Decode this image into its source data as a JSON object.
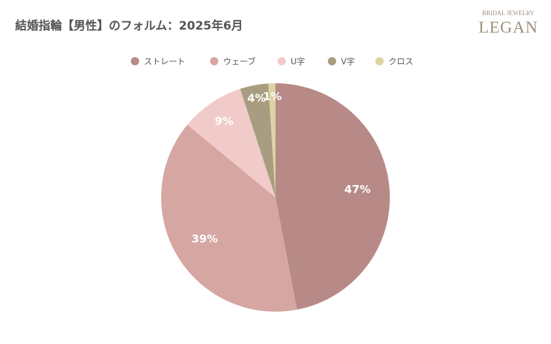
{
  "chart_data": {
    "type": "pie",
    "title": "結婚指輪【男性】のフォルム：2025年6月",
    "brand_tagline": "BRIDAL JEWELRY",
    "brand_name": "LEGAN",
    "categories": [
      "ストレート",
      "ウェーブ",
      "U字",
      "V字",
      "クロス"
    ],
    "values": [
      47,
      39,
      9,
      4,
      1
    ],
    "value_labels": [
      "47%",
      "39%",
      "9%",
      "4%",
      "1%"
    ],
    "colors": [
      "#b78a87",
      "#d6a6a3",
      "#f1cbc9",
      "#a89d80",
      "#dcd3a4"
    ],
    "legend": "top"
  }
}
